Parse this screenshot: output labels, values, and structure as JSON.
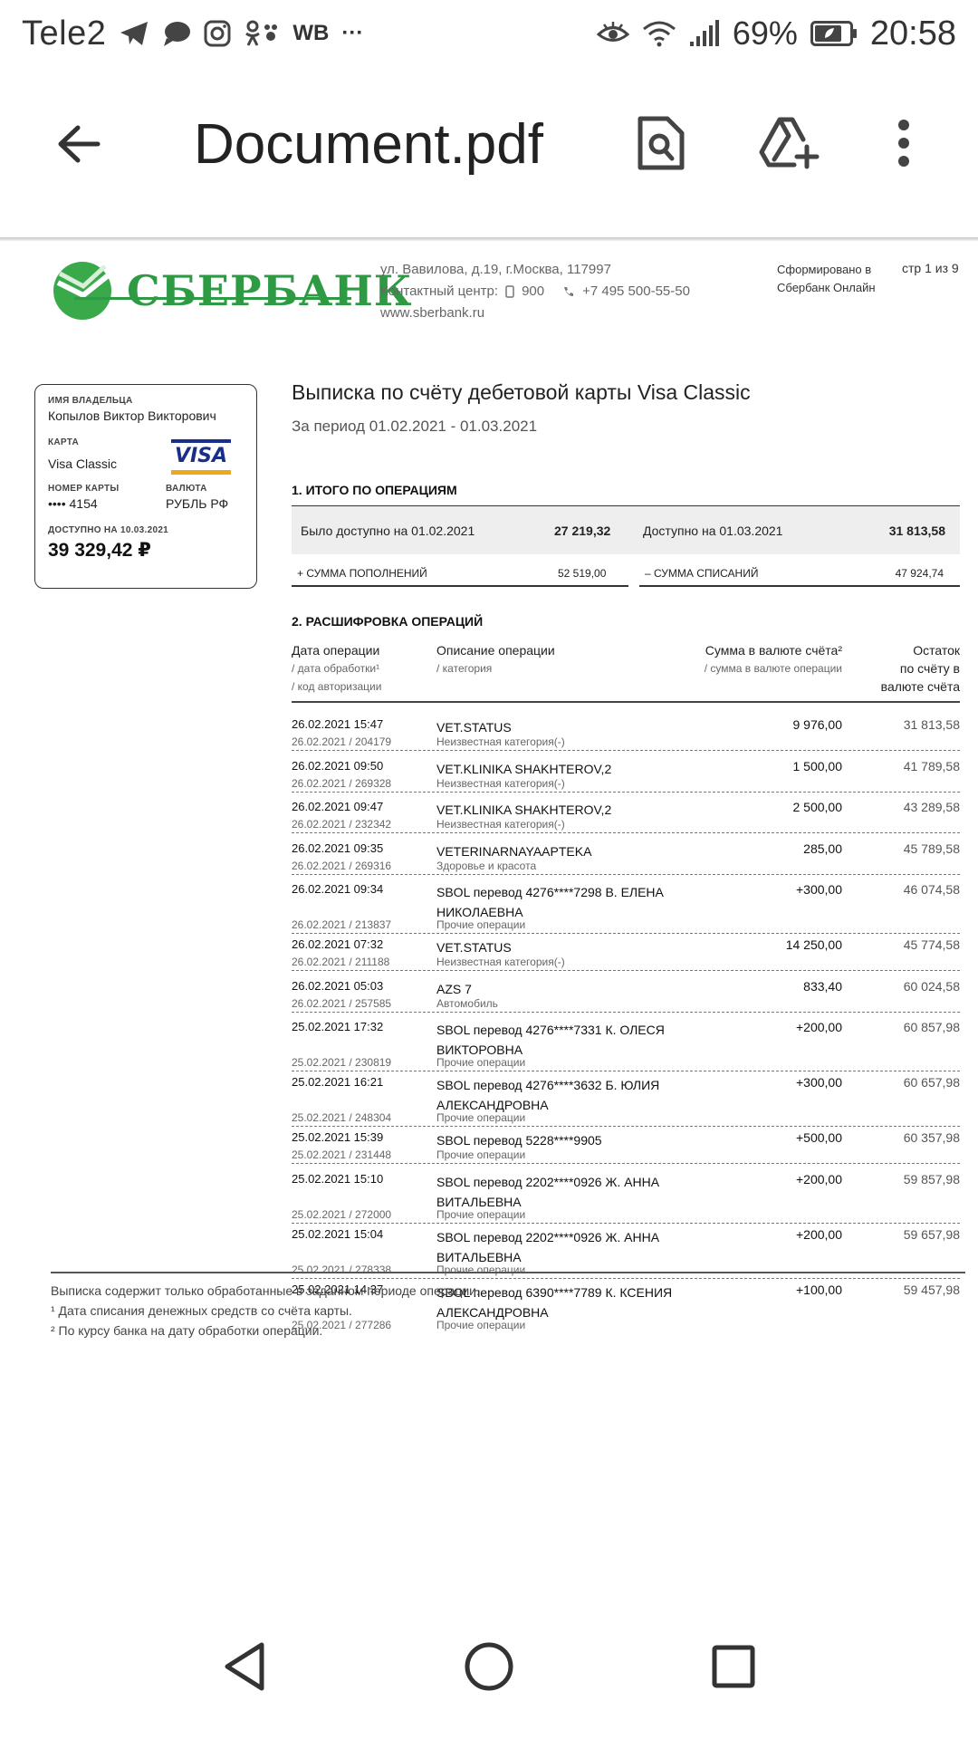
{
  "status_bar": {
    "carrier": "Tele2",
    "wb": "WB",
    "more": "···",
    "battery": "69%",
    "time": "20:58"
  },
  "app_bar": {
    "title": "Document.pdf"
  },
  "bank": {
    "logo_text": "СБЕРБАНК",
    "address": "ул. Вавилова, д.19, г.Москва, 117997",
    "contact_label": "Контактный центр:",
    "short_phone": "900",
    "phone": "+7 495 500-55-50",
    "site": "www.sberbank.ru",
    "formed_line1": "Сформировано в",
    "formed_line2": "Сбербанк Онлайн",
    "page": "стр 1 из 9"
  },
  "card": {
    "owner_label": "ИМЯ ВЛАДЕЛЬЦА",
    "owner": "Копылов Виктор Викторович",
    "card_label": "КАРТА",
    "card_type": "Visa Classic",
    "visa_logo": "VISA",
    "number_label": "НОМЕР КАРТЫ",
    "number": "•••• 4154",
    "currency_label": "ВАЛЮТА",
    "currency": "РУБЛЬ РФ",
    "available_label": "ДОСТУПНО НА 10.03.2021",
    "available": "39 329,42 ₽"
  },
  "statement": {
    "title": "Выписка по счёту дебетовой карты Visa Classic",
    "period": "За период 01.02.2021 - 01.03.2021",
    "section1": "1. ИТОГО ПО ОПЕРАЦИЯМ",
    "start_label": "Было доступно на 01.02.2021",
    "start_value": "27 219,32",
    "end_label": "Доступно на 01.03.2021",
    "end_value": "31 813,58",
    "topup_label": "+ СУММА ПОПОЛНЕНИЙ",
    "topup_value": "52 519,00",
    "debit_label": "– СУММА СПИСАНИЙ",
    "debit_value": "47 924,74",
    "section2": "2. РАСШИФРОВКА ОПЕРАЦИЙ",
    "col_date": "Дата операции",
    "col_date_sub1": "/ дата обработки¹",
    "col_date_sub2": "/ код авторизации",
    "col_desc": "Описание операции",
    "col_desc_sub": "/ категория",
    "col_amount": "Сумма в валюте счёта²",
    "col_amount_sub": "/ сумма в валюте операции",
    "col_bal1": "Остаток",
    "col_bal2": "по счёту в",
    "col_bal3": "валюте счёта"
  },
  "transactions": [
    {
      "date": "26.02.2021 15:47",
      "proc": "26.02.2021 / 204179",
      "desc": "VET.STATUS",
      "cat": "Неизвестная категория(-)",
      "amount": "9 976,00",
      "balance": "31 813,58"
    },
    {
      "date": "26.02.2021 09:50",
      "proc": "26.02.2021 / 269328",
      "desc": "VET.KLINIKA SHAKHTEROV,2",
      "cat": "Неизвестная категория(-)",
      "amount": "1 500,00",
      "balance": "41 789,58"
    },
    {
      "date": "26.02.2021 09:47",
      "proc": "26.02.2021 / 232342",
      "desc": "VET.KLINIKA SHAKHTEROV,2",
      "cat": "Неизвестная категория(-)",
      "amount": "2 500,00",
      "balance": "43 289,58"
    },
    {
      "date": "26.02.2021 09:35",
      "proc": "26.02.2021 / 269316",
      "desc": "VETERINARNAYAAPTEKA",
      "cat": "Здоровье и красота",
      "amount": "285,00",
      "balance": "45 789,58"
    },
    {
      "date": "26.02.2021 09:34",
      "proc": "26.02.2021 / 213837",
      "desc": "SBOL перевод 4276****7298 В. ЕЛЕНА НИКОЛАЕВНА",
      "cat": "Прочие операции",
      "amount": "+300,00",
      "balance": "46 074,58"
    },
    {
      "date": "26.02.2021 07:32",
      "proc": "26.02.2021 / 211188",
      "desc": "VET.STATUS",
      "cat": "Неизвестная категория(-)",
      "amount": "14 250,00",
      "balance": "45 774,58"
    },
    {
      "date": "26.02.2021 05:03",
      "proc": "26.02.2021 / 257585",
      "desc": "AZS 7",
      "cat": "Автомобиль",
      "amount": "833,40",
      "balance": "60 024,58"
    },
    {
      "date": "25.02.2021 17:32",
      "proc": "25.02.2021 / 230819",
      "desc": "SBOL перевод 4276****7331 К. ОЛЕСЯ ВИКТОРОВНА",
      "cat": "Прочие операции",
      "amount": "+200,00",
      "balance": "60 857,98"
    },
    {
      "date": "25.02.2021 16:21",
      "proc": "25.02.2021 / 248304",
      "desc": "SBOL перевод 4276****3632 Б. ЮЛИЯ АЛЕКСАНДРОВНА",
      "cat": "Прочие операции",
      "amount": "+300,00",
      "balance": "60 657,98"
    },
    {
      "date": "25.02.2021 15:39",
      "proc": "25.02.2021 / 231448",
      "desc": "SBOL перевод 5228****9905",
      "cat": "Прочие операции",
      "amount": "+500,00",
      "balance": "60 357,98"
    },
    {
      "date": "25.02.2021 15:10",
      "proc": "25.02.2021 / 272000",
      "desc": "SBOL перевод 2202****0926 Ж. АННА ВИТАЛЬЕВНА",
      "cat": "Прочие операции",
      "amount": "+200,00",
      "balance": "59 857,98"
    },
    {
      "date": "25.02.2021 15:04",
      "proc": "25.02.2021 / 278338",
      "desc": "SBOL перевод 2202****0926 Ж. АННА ВИТАЛЬЕВНА",
      "cat": "Прочие операции",
      "amount": "+200,00",
      "balance": "59 657,98"
    },
    {
      "date": "25.02.2021 14:37",
      "proc": "25.02.2021 / 277286",
      "desc": "SBOL перевод 6390****7789 К. КСЕНИЯ АЛЕКСАНДРОВНА",
      "cat": "Прочие операции",
      "amount": "+100,00",
      "balance": "59 457,98"
    }
  ],
  "footnotes": {
    "note0": "Выписка содержит только обработанные в заданном периоде операции.",
    "note1": "¹ Дата списания денежных средств со счёта карты.",
    "note2": "² По курсу банка на дату обработки операции."
  },
  "colors": {
    "sber_green": "#2f9a44",
    "visa_blue": "#1a2f8a",
    "visa_gold": "#f0a81b"
  },
  "icons": [
    "telegram-icon",
    "chat-bubble-icon",
    "instagram-icon",
    "odnoklassniki-icon",
    "eye-icon",
    "wifi-icon",
    "signal-icon",
    "battery-icon",
    "back-arrow-icon",
    "search-document-icon",
    "drive-add-icon",
    "more-vert-icon",
    "nav-back-icon",
    "nav-home-icon",
    "nav-recents-icon"
  ]
}
